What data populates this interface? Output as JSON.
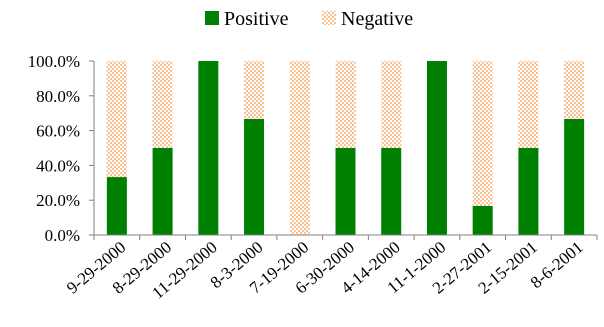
{
  "chart_data": {
    "type": "bar",
    "stacked": true,
    "percent": true,
    "categories": [
      "9-29-2000",
      "8-29-2000",
      "11-29-2000",
      "8-3-2000",
      "7-19-2000",
      "6-30-2000",
      "4-14-2000",
      "11-1-2000",
      "2-27-2001",
      "2-15-2001",
      "8-6-2001"
    ],
    "series": [
      {
        "name": "Positive",
        "color": "#008000",
        "pattern": "solid",
        "values": [
          33.3,
          50.0,
          100.0,
          66.7,
          0.0,
          50.0,
          50.0,
          100.0,
          16.7,
          50.0,
          66.7
        ]
      },
      {
        "name": "Negative",
        "color": "#f79646",
        "pattern": "dotted",
        "values": [
          66.7,
          50.0,
          0.0,
          33.3,
          100.0,
          50.0,
          50.0,
          0.0,
          83.3,
          50.0,
          33.3
        ]
      }
    ],
    "yticks": [
      "0.0%",
      "20.0%",
      "40.0%",
      "60.0%",
      "80.0%",
      "100.0%"
    ],
    "ylim": [
      0,
      100
    ],
    "legend_position": "top",
    "grid": false,
    "xlabel_rotation": "diagonal"
  }
}
